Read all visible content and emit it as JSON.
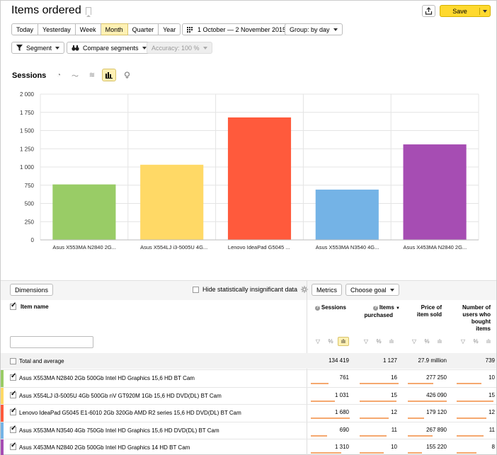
{
  "header": {
    "title": "Items ordered",
    "save_label": "Save"
  },
  "periods": [
    "Today",
    "Yesterday",
    "Week",
    "Month",
    "Quarter",
    "Year"
  ],
  "active_period": "Month",
  "date_range": "1 October — 2 November 2015",
  "group_by": "Group: by day",
  "segment_label": "Segment",
  "compare_label": "Compare segments",
  "accuracy_label": "Accuracy: 100 %",
  "chart_section_title": "Sessions",
  "chart_data": {
    "type": "bar",
    "categories": [
      "Asus X553MA N2840 2G...",
      "Asus X554LJ i3-5005U 4G...",
      "Lenovo IdeaPad G5045 ...",
      "Asus X553MA N3540 4G...",
      "Asus X453MA N2840 2G..."
    ],
    "values": [
      761,
      1031,
      1680,
      690,
      1310
    ],
    "colors": [
      "#99cc66",
      "#ffd966",
      "#ff5a3c",
      "#74b3e6",
      "#a64db3"
    ],
    "ylim": [
      0,
      2000
    ],
    "yticks": [
      "0",
      "250",
      "500",
      "750",
      "1 000",
      "1 250",
      "1 500",
      "1 750",
      "2 000"
    ],
    "grid": true
  },
  "table": {
    "dimensions_label": "Dimensions",
    "hide_label": "Hide statistically insignificant data",
    "metrics_label": "Metrics",
    "goal_label": "Choose goal",
    "col_name": "Item name",
    "col_sessions": "Sessions",
    "col_items_l1": "Items",
    "col_items_l2": "purchased",
    "col_price_l1": "Price of",
    "col_price_l2": "item sold",
    "col_users_l1": "Number of",
    "col_users_l2": "users who",
    "col_users_l3": "bought",
    "col_users_l4": "items",
    "total_label": "Total and average",
    "total_sessions": "134 419",
    "total_items": "1 127",
    "total_price": "27.9 million",
    "total_users": "739",
    "rows": [
      {
        "name": "Asus X553MA N2840 2Gb 500Gb Intel HD Graphics 15,6 HD BT Cam",
        "sessions": "761",
        "items": "16",
        "price": "277 250",
        "users": "10"
      },
      {
        "name": "Asus X554LJ i3-5005U 4Gb 500Gb nV GT920M 1Gb 15,6 HD DVD(DL) BT Cam",
        "sessions": "1 031",
        "items": "15",
        "price": "426 090",
        "users": "15"
      },
      {
        "name": "Lenovo IdeaPad G5045 E1-6010 2Gb 320Gb AMD R2 series 15,6 HD DVD(DL) BT Cam",
        "sessions": "1 680",
        "items": "12",
        "price": "179 120",
        "users": "12"
      },
      {
        "name": "Asus X553MA N3540 4Gb 750Gb Intel HD Graphics 15,6 HD DVD(DL) BT Cam",
        "sessions": "690",
        "items": "11",
        "price": "267 890",
        "users": "11"
      },
      {
        "name": "Asus X453MA N2840 2Gb 500Gb Intel HD Graphics 14 HD BT Cam",
        "sessions": "1 310",
        "items": "10",
        "price": "155 220",
        "users": "8"
      }
    ]
  }
}
